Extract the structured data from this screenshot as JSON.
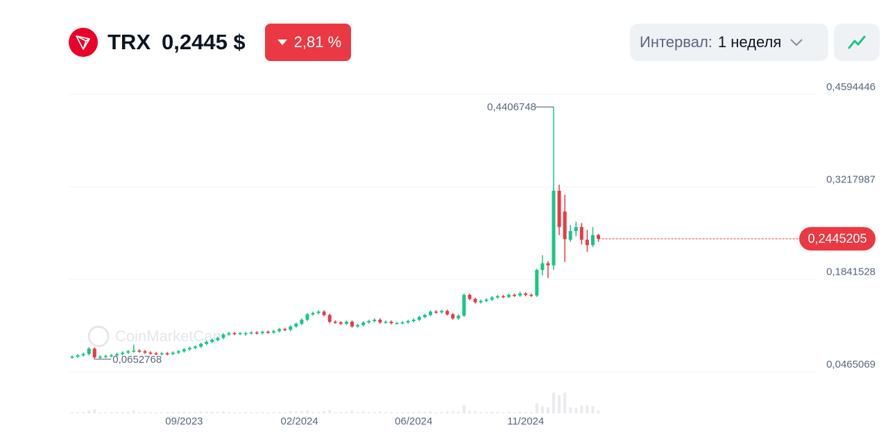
{
  "header": {
    "symbol": "TRX",
    "price": "0,2445 $",
    "change": "2,81 %",
    "change_direction": "down",
    "logo_icon": "tron-logo-icon"
  },
  "controls": {
    "interval_label": "Интервал:",
    "interval_value": "1 неделя",
    "chart_type_icon": "line-chart-icon"
  },
  "colors": {
    "up": "#16c784",
    "down": "#ea3943",
    "badge": "#ea3943"
  },
  "watermark": "CoinMarketCap",
  "chart_data": {
    "type": "candlestick",
    "interval": "1 week",
    "y_ticks": [
      "0,4594446",
      "0,3217987",
      "0,1841528",
      "0,0465069"
    ],
    "y_tick_values": [
      0.4594446,
      0.3217987,
      0.1841528,
      0.0465069
    ],
    "ylim": [
      0.0465069,
      0.4594446
    ],
    "x_ticks": [
      "09/2023",
      "02/2024",
      "06/2024",
      "11/2024"
    ],
    "grid": true,
    "max_label": "0,4406748",
    "max_value": 0.4406748,
    "min_label": "0,0652768",
    "min_value": 0.0652768,
    "current_label": "0,2445205",
    "current_value": 0.2445205,
    "candles_ohlc": [
      [
        0.068,
        0.071,
        0.066,
        0.069
      ],
      [
        0.069,
        0.073,
        0.067,
        0.071
      ],
      [
        0.071,
        0.075,
        0.069,
        0.073
      ],
      [
        0.073,
        0.083,
        0.071,
        0.081
      ],
      [
        0.081,
        0.083,
        0.0653,
        0.068
      ],
      [
        0.068,
        0.071,
        0.066,
        0.069
      ],
      [
        0.069,
        0.072,
        0.067,
        0.07
      ],
      [
        0.07,
        0.073,
        0.068,
        0.071
      ],
      [
        0.071,
        0.075,
        0.069,
        0.073
      ],
      [
        0.073,
        0.077,
        0.071,
        0.075
      ],
      [
        0.075,
        0.079,
        0.073,
        0.077
      ],
      [
        0.077,
        0.087,
        0.075,
        0.078
      ],
      [
        0.078,
        0.08,
        0.075,
        0.077
      ],
      [
        0.077,
        0.079,
        0.073,
        0.075
      ],
      [
        0.075,
        0.077,
        0.072,
        0.074
      ],
      [
        0.074,
        0.076,
        0.071,
        0.073
      ],
      [
        0.073,
        0.076,
        0.071,
        0.074
      ],
      [
        0.074,
        0.076,
        0.071,
        0.073
      ],
      [
        0.073,
        0.077,
        0.071,
        0.075
      ],
      [
        0.075,
        0.079,
        0.073,
        0.077
      ],
      [
        0.077,
        0.082,
        0.075,
        0.08
      ],
      [
        0.08,
        0.084,
        0.078,
        0.082
      ],
      [
        0.082,
        0.086,
        0.08,
        0.084
      ],
      [
        0.084,
        0.09,
        0.082,
        0.088
      ],
      [
        0.088,
        0.093,
        0.086,
        0.091
      ],
      [
        0.091,
        0.096,
        0.089,
        0.094
      ],
      [
        0.094,
        0.099,
        0.092,
        0.097
      ],
      [
        0.097,
        0.104,
        0.095,
        0.102
      ],
      [
        0.102,
        0.106,
        0.1,
        0.104
      ],
      [
        0.104,
        0.106,
        0.101,
        0.103
      ],
      [
        0.103,
        0.106,
        0.101,
        0.104
      ],
      [
        0.104,
        0.106,
        0.1,
        0.104
      ],
      [
        0.104,
        0.107,
        0.102,
        0.105
      ],
      [
        0.105,
        0.107,
        0.102,
        0.104
      ],
      [
        0.104,
        0.108,
        0.102,
        0.106
      ],
      [
        0.106,
        0.108,
        0.103,
        0.105
      ],
      [
        0.105,
        0.109,
        0.103,
        0.107
      ],
      [
        0.107,
        0.112,
        0.105,
        0.11
      ],
      [
        0.11,
        0.112,
        0.107,
        0.109
      ],
      [
        0.109,
        0.116,
        0.107,
        0.114
      ],
      [
        0.114,
        0.12,
        0.112,
        0.118
      ],
      [
        0.118,
        0.126,
        0.116,
        0.124
      ],
      [
        0.124,
        0.134,
        0.122,
        0.132
      ],
      [
        0.132,
        0.136,
        0.13,
        0.134
      ],
      [
        0.134,
        0.138,
        0.132,
        0.136
      ],
      [
        0.136,
        0.138,
        0.129,
        0.131
      ],
      [
        0.131,
        0.133,
        0.119,
        0.121
      ],
      [
        0.121,
        0.123,
        0.118,
        0.12
      ],
      [
        0.12,
        0.122,
        0.116,
        0.118
      ],
      [
        0.118,
        0.123,
        0.116,
        0.121
      ],
      [
        0.121,
        0.123,
        0.112,
        0.114
      ],
      [
        0.114,
        0.118,
        0.112,
        0.116
      ],
      [
        0.116,
        0.122,
        0.114,
        0.12
      ],
      [
        0.12,
        0.124,
        0.118,
        0.122
      ],
      [
        0.122,
        0.126,
        0.12,
        0.124
      ],
      [
        0.124,
        0.126,
        0.118,
        0.12
      ],
      [
        0.12,
        0.123,
        0.118,
        0.121
      ],
      [
        0.121,
        0.123,
        0.117,
        0.119
      ],
      [
        0.119,
        0.121,
        0.117,
        0.119
      ],
      [
        0.119,
        0.122,
        0.117,
        0.12
      ],
      [
        0.12,
        0.124,
        0.118,
        0.122
      ],
      [
        0.122,
        0.126,
        0.12,
        0.124
      ],
      [
        0.124,
        0.13,
        0.122,
        0.128
      ],
      [
        0.128,
        0.133,
        0.126,
        0.131
      ],
      [
        0.131,
        0.138,
        0.129,
        0.136
      ],
      [
        0.136,
        0.138,
        0.133,
        0.135
      ],
      [
        0.135,
        0.139,
        0.133,
        0.137
      ],
      [
        0.137,
        0.139,
        0.13,
        0.132
      ],
      [
        0.132,
        0.134,
        0.124,
        0.126
      ],
      [
        0.126,
        0.132,
        0.124,
        0.13
      ],
      [
        0.13,
        0.163,
        0.128,
        0.161
      ],
      [
        0.161,
        0.163,
        0.153,
        0.155
      ],
      [
        0.155,
        0.157,
        0.148,
        0.15
      ],
      [
        0.15,
        0.154,
        0.148,
        0.152
      ],
      [
        0.152,
        0.156,
        0.15,
        0.154
      ],
      [
        0.154,
        0.159,
        0.152,
        0.157
      ],
      [
        0.157,
        0.161,
        0.155,
        0.159
      ],
      [
        0.159,
        0.161,
        0.156,
        0.158
      ],
      [
        0.158,
        0.163,
        0.156,
        0.161
      ],
      [
        0.161,
        0.163,
        0.158,
        0.16
      ],
      [
        0.16,
        0.166,
        0.158,
        0.163
      ],
      [
        0.163,
        0.165,
        0.159,
        0.161
      ],
      [
        0.161,
        0.163,
        0.158,
        0.16
      ],
      [
        0.16,
        0.2,
        0.158,
        0.198
      ],
      [
        0.198,
        0.22,
        0.19,
        0.208
      ],
      [
        0.208,
        0.211,
        0.186,
        0.205
      ],
      [
        0.205,
        0.4407,
        0.198,
        0.316
      ],
      [
        0.316,
        0.325,
        0.25,
        0.262
      ],
      [
        0.285,
        0.31,
        0.21,
        0.244
      ],
      [
        0.243,
        0.265,
        0.24,
        0.256
      ],
      [
        0.256,
        0.27,
        0.248,
        0.262
      ],
      [
        0.262,
        0.268,
        0.236,
        0.243
      ],
      [
        0.243,
        0.258,
        0.225,
        0.235
      ],
      [
        0.235,
        0.262,
        0.232,
        0.25
      ],
      [
        0.25,
        0.252,
        0.24,
        0.2445
      ]
    ]
  }
}
